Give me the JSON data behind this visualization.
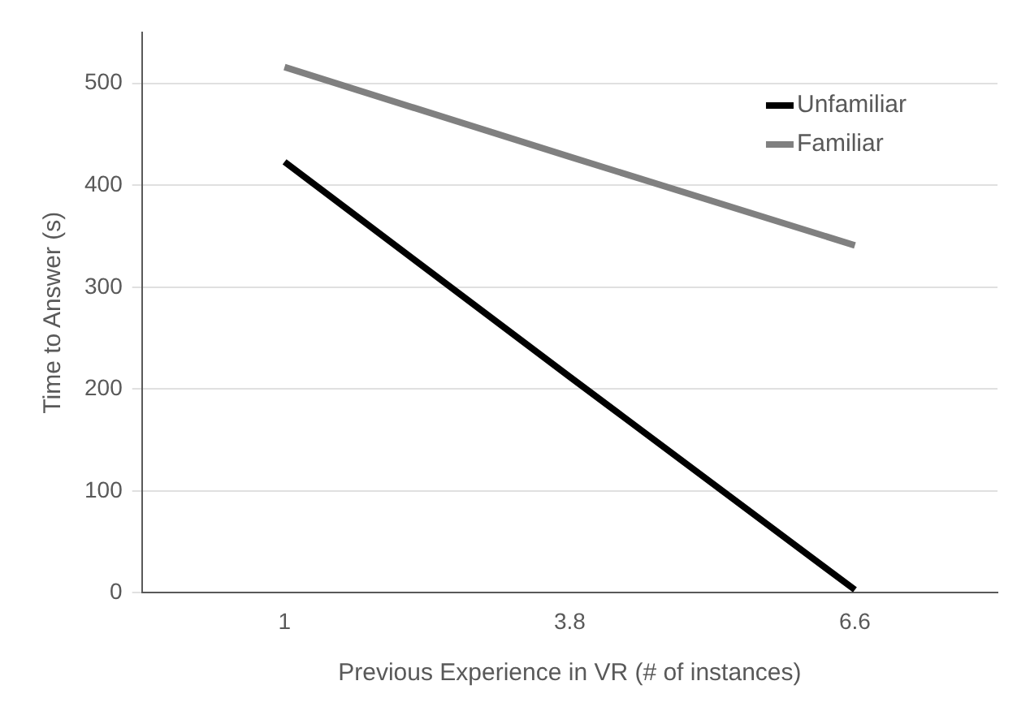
{
  "chart_data": {
    "type": "line",
    "xlabel": "Previous Experience in VR (# of instances)",
    "ylabel": "Time to Answer (s)",
    "categories": [
      "1",
      "3.8",
      "6.6"
    ],
    "series": [
      {
        "name": "Unfamiliar",
        "color": "#000000",
        "values": [
          423,
          212,
          3
        ]
      },
      {
        "name": "Familiar",
        "color": "#808080",
        "values": [
          516,
          428,
          341
        ]
      }
    ],
    "ylim": [
      0,
      550
    ],
    "yticks": [
      0,
      100,
      200,
      300,
      400,
      500
    ],
    "grid": "y",
    "legend": "top right",
    "marker": "none",
    "line_style": "solid"
  }
}
